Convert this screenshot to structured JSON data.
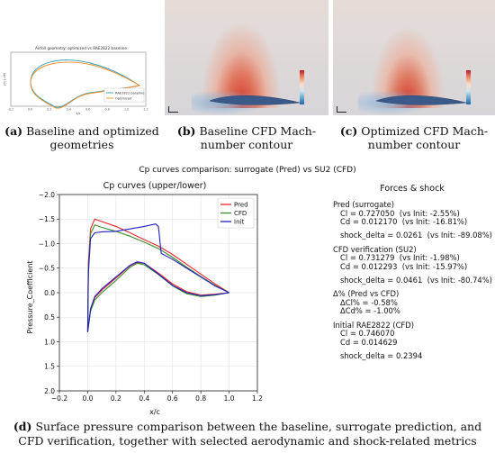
{
  "panel_a": {
    "title": "Airfoil geometry: optimized vs RAE2822 baseline",
    "ylabel": "y/c (-ve)",
    "xlabel": "x/c",
    "legend": [
      "RAE2822 baseline",
      "Optimized"
    ],
    "xticks": [
      "-0.2",
      "0.0",
      "0.2",
      "0.4",
      "0.6",
      "0.8",
      "1.0",
      "1.2"
    ],
    "caption_letter": "(a)",
    "caption_text": " Baseline and optimized geometries"
  },
  "panel_b": {
    "caption_letter": "(b)",
    "caption_text": " Baseline CFD Mach-number contour"
  },
  "panel_c": {
    "caption_letter": "(c)",
    "caption_text": " Optimized CFD Mach-number contour"
  },
  "panel_d": {
    "suptitle": "Cp curves comparison: surrogate (Pred) vs SU2 (CFD)",
    "caption_letter": "(d)",
    "caption_text": " Surface pressure comparison between the baseline, surrogate prediction, and CFD verification, together with selected aerodynamic and shock-related metrics",
    "forces_title": "Forces & shock",
    "forces_lines": [
      "Pred (surrogate)",
      "   Cl = 0.727050  (vs Init: -2.55%)",
      "   Cd = 0.012170  (vs Init: -16.81%)",
      "",
      "   shock_delta = 0.0261  (vs Init: -89.08%)",
      "",
      "CFD verification (SU2)",
      "   Cl = 0.731279  (vs Init: -1.98%)",
      "   Cd = 0.012293  (vs Init: -15.97%)",
      "",
      "   shock_delta = 0.0461  (vs Init: -80.74%)",
      "",
      "Δ% (Pred vs CFD)",
      "   ΔCl% = -0.58%",
      "   ΔCd% = -1.00%",
      "",
      "Initial RAE2822 (CFD)",
      "   Cl = 0.746070",
      "   Cd = 0.014629",
      "",
      "   shock_delta = 0.2394"
    ]
  },
  "chart_data": {
    "type": "line",
    "title": "Cp curves (upper/lower)",
    "xlabel": "x/c",
    "ylabel": "Pressure_Coefficient",
    "xlim": [
      -0.2,
      1.2
    ],
    "ylim": [
      2.0,
      -2.0
    ],
    "y_inverted": true,
    "xticks": [
      -0.2,
      0.0,
      0.2,
      0.4,
      0.6,
      0.8,
      1.0,
      1.2
    ],
    "yticks": [
      -2.0,
      -1.5,
      -1.0,
      -0.5,
      0.0,
      0.5,
      1.0,
      1.5,
      2.0
    ],
    "ytick_labels": [
      "−2.0",
      "−1.5",
      "−1.0",
      "−0.5",
      "0.0",
      "0.5",
      "1.0",
      "1.5",
      "2.0"
    ],
    "xtick_labels": [
      "−0.2",
      "0.0",
      "0.2",
      "0.4",
      "0.6",
      "0.8",
      "1.0",
      "1.2"
    ],
    "legend_position": "top-right",
    "series": [
      {
        "name": "Pred",
        "color": "#e8262a",
        "upper": [
          [
            0.0,
            0.8
          ],
          [
            0.005,
            -0.6
          ],
          [
            0.02,
            -1.3
          ],
          [
            0.05,
            -1.5
          ],
          [
            0.1,
            -1.45
          ],
          [
            0.2,
            -1.35
          ],
          [
            0.3,
            -1.22
          ],
          [
            0.4,
            -1.08
          ],
          [
            0.5,
            -0.95
          ],
          [
            0.6,
            -0.78
          ],
          [
            0.7,
            -0.58
          ],
          [
            0.8,
            -0.38
          ],
          [
            0.9,
            -0.18
          ],
          [
            1.0,
            0.0
          ]
        ],
        "lower": [
          [
            0.0,
            0.8
          ],
          [
            0.02,
            0.35
          ],
          [
            0.05,
            0.1
          ],
          [
            0.1,
            -0.05
          ],
          [
            0.2,
            -0.3
          ],
          [
            0.3,
            -0.55
          ],
          [
            0.35,
            -0.62
          ],
          [
            0.4,
            -0.6
          ],
          [
            0.5,
            -0.4
          ],
          [
            0.6,
            -0.18
          ],
          [
            0.7,
            -0.02
          ],
          [
            0.8,
            0.05
          ],
          [
            0.9,
            0.03
          ],
          [
            1.0,
            0.0
          ]
        ]
      },
      {
        "name": "CFD",
        "color": "#3a8a2a",
        "upper": [
          [
            0.0,
            0.8
          ],
          [
            0.005,
            -0.5
          ],
          [
            0.02,
            -1.2
          ],
          [
            0.05,
            -1.38
          ],
          [
            0.1,
            -1.33
          ],
          [
            0.2,
            -1.25
          ],
          [
            0.3,
            -1.15
          ],
          [
            0.4,
            -1.03
          ],
          [
            0.5,
            -0.9
          ],
          [
            0.6,
            -0.72
          ],
          [
            0.7,
            -0.52
          ],
          [
            0.8,
            -0.33
          ],
          [
            0.9,
            -0.15
          ],
          [
            1.0,
            0.0
          ]
        ],
        "lower": [
          [
            0.0,
            0.8
          ],
          [
            0.02,
            0.38
          ],
          [
            0.05,
            0.15
          ],
          [
            0.1,
            0.0
          ],
          [
            0.2,
            -0.25
          ],
          [
            0.3,
            -0.52
          ],
          [
            0.35,
            -0.6
          ],
          [
            0.4,
            -0.57
          ],
          [
            0.5,
            -0.37
          ],
          [
            0.6,
            -0.14
          ],
          [
            0.7,
            0.02
          ],
          [
            0.8,
            0.08
          ],
          [
            0.9,
            0.05
          ],
          [
            1.0,
            0.0
          ]
        ]
      },
      {
        "name": "Init",
        "color": "#1f1fbf",
        "upper": [
          [
            0.0,
            0.8
          ],
          [
            0.005,
            -0.4
          ],
          [
            0.02,
            -1.1
          ],
          [
            0.05,
            -1.22
          ],
          [
            0.1,
            -1.24
          ],
          [
            0.2,
            -1.25
          ],
          [
            0.3,
            -1.3
          ],
          [
            0.4,
            -1.35
          ],
          [
            0.48,
            -1.4
          ],
          [
            0.5,
            -1.35
          ],
          [
            0.52,
            -0.8
          ],
          [
            0.6,
            -0.68
          ],
          [
            0.7,
            -0.5
          ],
          [
            0.8,
            -0.32
          ],
          [
            0.9,
            -0.14
          ],
          [
            1.0,
            0.0
          ]
        ],
        "lower": [
          [
            0.0,
            0.8
          ],
          [
            0.02,
            0.33
          ],
          [
            0.05,
            0.08
          ],
          [
            0.1,
            -0.08
          ],
          [
            0.2,
            -0.32
          ],
          [
            0.3,
            -0.56
          ],
          [
            0.35,
            -0.63
          ],
          [
            0.4,
            -0.6
          ],
          [
            0.5,
            -0.38
          ],
          [
            0.6,
            -0.15
          ],
          [
            0.7,
            0.0
          ],
          [
            0.8,
            0.06
          ],
          [
            0.9,
            0.04
          ],
          [
            1.0,
            0.0
          ]
        ]
      }
    ]
  }
}
